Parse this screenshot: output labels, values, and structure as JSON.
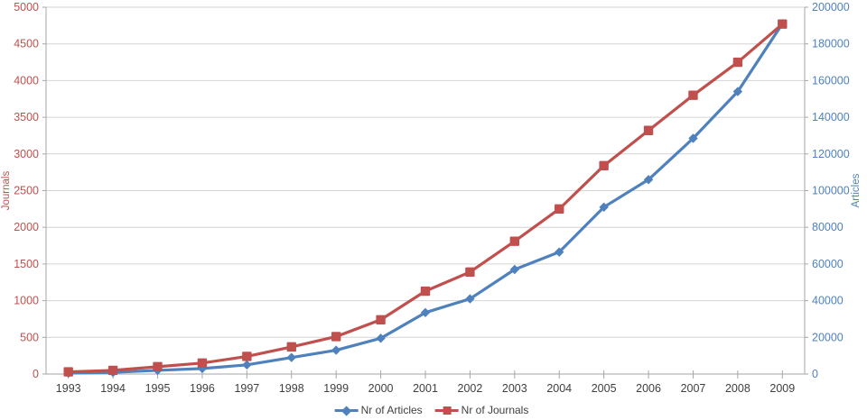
{
  "chart_data": {
    "type": "line",
    "title": "",
    "x": [
      "1993",
      "1994",
      "1995",
      "1996",
      "1997",
      "1998",
      "1999",
      "2000",
      "2001",
      "2002",
      "2003",
      "2004",
      "2005",
      "2006",
      "2007",
      "2008",
      "2009"
    ],
    "series": [
      {
        "name": "Nr of Articles",
        "axis": "right",
        "color": "#4F81BD",
        "marker": "diamond",
        "values": [
          500,
          900,
          2000,
          3000,
          5000,
          9000,
          13000,
          19500,
          33500,
          41000,
          57000,
          66500,
          91000,
          106000,
          128500,
          154000,
          191000
        ]
      },
      {
        "name": "Nr of Journals",
        "axis": "left",
        "color": "#C0504D",
        "marker": "square",
        "values": [
          30,
          50,
          100,
          150,
          240,
          370,
          510,
          740,
          1130,
          1390,
          1810,
          2250,
          2840,
          3320,
          3800,
          4250,
          4770
        ]
      }
    ],
    "left_axis": {
      "label": "Journals",
      "min": 0,
      "max": 5000,
      "step": 500,
      "color": "#C0504D",
      "ticks": [
        "0",
        "500",
        "1000",
        "1500",
        "2000",
        "2500",
        "3000",
        "3500",
        "4000",
        "4500",
        "5000"
      ]
    },
    "right_axis": {
      "label": "Articles",
      "min": 0,
      "max": 200000,
      "step": 20000,
      "color": "#4F81BD",
      "ticks": [
        "0",
        "20000",
        "40000",
        "60000",
        "80000",
        "100000",
        "120000",
        "140000",
        "160000",
        "180000",
        "200000"
      ]
    },
    "grid": true,
    "gridline_color": "#D4D4D4",
    "axis_line_color": "#A6A6A6",
    "x_label_color": "#3F3F3F",
    "legend_position": "bottom"
  }
}
